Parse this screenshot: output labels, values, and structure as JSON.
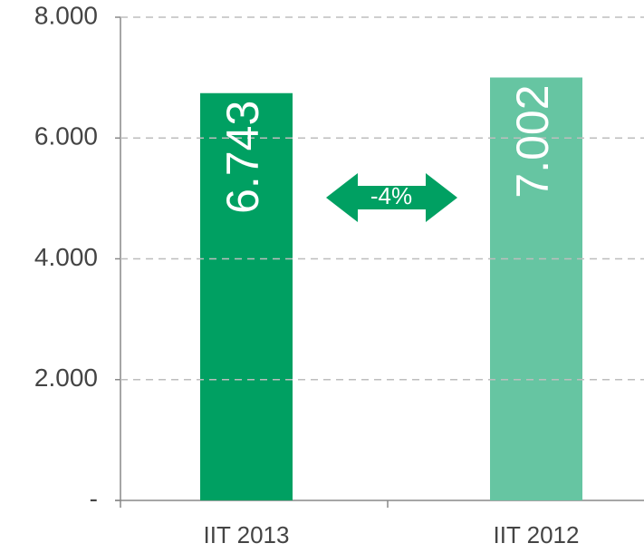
{
  "chart_data": {
    "type": "bar",
    "categories": [
      "IIT 2013",
      "IIT 2012"
    ],
    "values": [
      6743,
      7002
    ],
    "value_labels": [
      "6.743",
      "7.002"
    ],
    "colors": [
      "#00a062",
      "#66c5a2"
    ],
    "ylim": [
      0,
      8000
    ],
    "yticks": [
      {
        "value": 0,
        "label": "-"
      },
      {
        "value": 2000,
        "label": "2.000"
      },
      {
        "value": 4000,
        "label": "4.000"
      },
      {
        "value": 6000,
        "label": "6.000"
      },
      {
        "value": 8000,
        "label": "8.000"
      }
    ],
    "grid": true,
    "annotation": "-4%"
  }
}
